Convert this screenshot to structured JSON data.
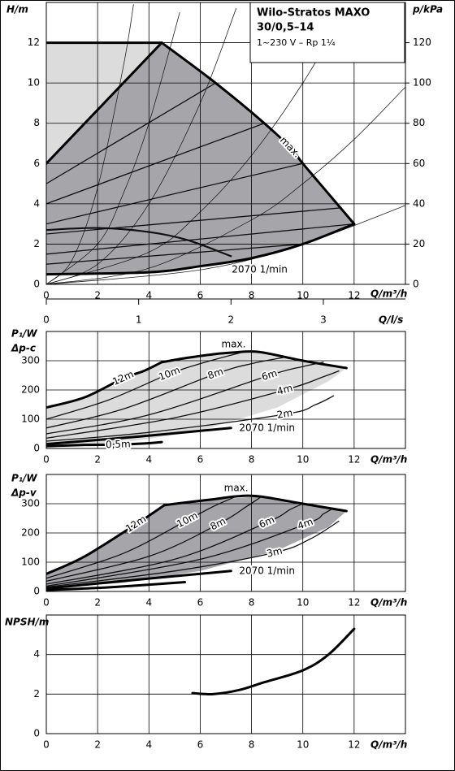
{
  "chart_data": [
    {
      "type": "line",
      "title": "Wilo-Stratos MAXO",
      "subtitle": "30/0,5–14",
      "note": "1~230 V – Rp 1¼",
      "ylabel": "H/m",
      "y2label": "p/kPa",
      "xlabel": "Q/m³/h",
      "x2label": "Q/l/s",
      "xlim": [
        0,
        14
      ],
      "xticks": [
        0,
        2,
        4,
        6,
        8,
        10,
        12
      ],
      "ylim": [
        0,
        14
      ],
      "yticks": [
        0,
        2,
        4,
        6,
        8,
        10,
        12
      ],
      "y2lim": [
        0,
        140
      ],
      "y2ticks": [
        0,
        20,
        40,
        60,
        80,
        100,
        120
      ],
      "x2lim": [
        0,
        3.889
      ],
      "x2ticks": [
        0,
        1,
        2,
        3
      ],
      "grid": true,
      "series": [
        {
          "style": "area",
          "color": "#dcdcdc",
          "x": [
            0,
            0,
            4.5
          ],
          "values": [
            6,
            12,
            12
          ]
        },
        {
          "style": "area",
          "color": "#a6a6aa",
          "x": [
            0,
            4.5,
            6.6,
            8.5,
            10,
            12,
            10,
            8,
            6,
            4,
            0
          ],
          "values": [
            6,
            12,
            10,
            8,
            6,
            3,
            2,
            1.3,
            0.9,
            0.6,
            0.5
          ]
        },
        {
          "style": "thin",
          "color": "#222222",
          "x": [
            0,
            1,
            2,
            3,
            3.4
          ],
          "values": [
            0,
            1.2,
            4.8,
            10.8,
            13.9
          ]
        },
        {
          "style": "thin",
          "color": "#222222",
          "x": [
            0,
            2,
            3,
            4,
            5.2
          ],
          "values": [
            0,
            2,
            4.5,
            8,
            13.5
          ]
        },
        {
          "style": "thin",
          "color": "#222222",
          "x": [
            0,
            2,
            4,
            6,
            7.4
          ],
          "values": [
            0,
            1,
            4,
            9,
            13.7
          ]
        },
        {
          "style": "thin",
          "color": "#222222",
          "x": [
            0,
            4,
            6,
            8,
            10,
            11.8
          ],
          "values": [
            0,
            1.6,
            3.6,
            6.4,
            10,
            13.9
          ]
        },
        {
          "style": "thin",
          "color": "#222222",
          "x": [
            0,
            4,
            8,
            10,
            12,
            14
          ],
          "values": [
            0,
            0.8,
            3.2,
            5,
            7.2,
            9.8
          ]
        },
        {
          "style": "thin",
          "color": "#222222",
          "x": [
            0,
            6,
            10,
            14
          ],
          "values": [
            0,
            0.72,
            2,
            3.92
          ]
        },
        {
          "style": "medium",
          "color": "#111111",
          "x": [
            0,
            6.6
          ],
          "values": [
            5,
            10
          ]
        },
        {
          "style": "medium",
          "color": "#111111",
          "x": [
            0,
            8.5
          ],
          "values": [
            4,
            8
          ]
        },
        {
          "style": "medium",
          "color": "#111111",
          "x": [
            0,
            10
          ],
          "values": [
            3,
            6
          ]
        },
        {
          "style": "medium",
          "color": "#111111",
          "x": [
            0,
            11.5
          ],
          "values": [
            2.5,
            3.8
          ]
        },
        {
          "style": "medium",
          "color": "#111111",
          "x": [
            0,
            12
          ],
          "values": [
            1.5,
            3
          ]
        },
        {
          "style": "medium",
          "color": "#111111",
          "x": [
            0,
            10
          ],
          "values": [
            1,
            2
          ]
        },
        {
          "style": "bold",
          "color": "#111111",
          "x": [
            0,
            2,
            4,
            5.5,
            7.2
          ],
          "values": [
            2.7,
            2.8,
            2.6,
            2.2,
            1.4
          ]
        },
        {
          "style": "thick",
          "color": "#000000",
          "x": [
            0,
            4.5
          ],
          "values": [
            12,
            12
          ]
        },
        {
          "style": "thick",
          "color": "#000000",
          "x": [
            0,
            4.5
          ],
          "values": [
            6,
            12
          ]
        },
        {
          "name": "max.",
          "label_pos": "mid",
          "style": "thick",
          "color": "#000000",
          "x": [
            4.5,
            6.6,
            8.5,
            9.5,
            10,
            11,
            12
          ],
          "values": [
            12,
            10,
            8,
            6.8,
            6,
            4.5,
            3
          ]
        },
        {
          "name": "2070 1/min",
          "label_pos": "below",
          "style": "thick",
          "color": "#000000",
          "x": [
            0,
            4,
            6,
            8,
            10,
            12
          ],
          "values": [
            0.5,
            0.6,
            0.9,
            1.3,
            2,
            3
          ]
        }
      ]
    },
    {
      "type": "line",
      "ylabel": "P₁/W",
      "ylabel_sub": "Δp-c",
      "xlabel": "Q/m³/h",
      "xlim": [
        0,
        14
      ],
      "xticks": [
        0,
        2,
        4,
        6,
        8,
        10,
        12
      ],
      "ylim": [
        0,
        400
      ],
      "yticks": [
        0,
        100,
        200,
        300
      ],
      "grid": true,
      "series": [
        {
          "style": "area",
          "color": "#dcdcdc",
          "x": [
            0,
            2,
            4.5,
            6,
            8.3,
            10,
            11.7,
            11,
            9,
            6,
            3,
            0
          ],
          "values": [
            140,
            190,
            295,
            315,
            330,
            300,
            275,
            230,
            140,
            60,
            20,
            5
          ]
        },
        {
          "name": "12m",
          "label_pos": "mid",
          "style": "thick",
          "color": "#000000",
          "x": [
            0,
            1.5,
            3,
            3.8,
            4.5
          ],
          "values": [
            140,
            175,
            240,
            265,
            295
          ]
        },
        {
          "name": "max.",
          "label_pos": "above",
          "style": "thick",
          "color": "#000000",
          "x": [
            4.5,
            5.5,
            6.5,
            7.3,
            8.3,
            10,
            11.7
          ],
          "values": [
            295,
            310,
            322,
            328,
            330,
            300,
            275
          ]
        },
        {
          "name": "10m",
          "label_pos": "mid",
          "style": "medium",
          "color": "#111111",
          "x": [
            0,
            2.4,
            4.8,
            6.2,
            7.6
          ],
          "values": [
            100,
            165,
            255,
            295,
            328
          ]
        },
        {
          "name": "8m",
          "label_pos": "mid",
          "style": "medium",
          "color": "#111111",
          "x": [
            0,
            3,
            6.6,
            8,
            9.3
          ],
          "values": [
            70,
            135,
            255,
            290,
            312
          ]
        },
        {
          "name": "6m",
          "label_pos": "mid",
          "style": "medium",
          "color": "#111111",
          "x": [
            0,
            4,
            8.7,
            10,
            10.8
          ],
          "values": [
            50,
            115,
            250,
            280,
            295
          ]
        },
        {
          "name": "4m",
          "label_pos": "mid",
          "style": "medium",
          "color": "#111111",
          "x": [
            0,
            5,
            9.3,
            10.8,
            11.4
          ],
          "values": [
            35,
            105,
            200,
            245,
            265
          ]
        },
        {
          "name": "2m",
          "label_pos": "mid",
          "style": "medium",
          "color": "#111111",
          "x": [
            0,
            4,
            9.3,
            10.5,
            11.2
          ],
          "values": [
            25,
            55,
            117,
            150,
            180
          ]
        },
        {
          "name": "2070 1/min",
          "label_pos": "end",
          "style": "thick",
          "color": "#000000",
          "x": [
            0,
            3.5,
            7.2
          ],
          "values": [
            15,
            40,
            70
          ]
        },
        {
          "name": "0,5m",
          "label_pos": "mid",
          "style": "thick",
          "color": "#000000",
          "x": [
            0,
            1.5,
            2.8,
            4,
            4.5
          ],
          "values": [
            8,
            12,
            13,
            18,
            22
          ]
        }
      ]
    },
    {
      "type": "line",
      "ylabel": "P₁/W",
      "ylabel_sub": "Δp-v",
      "xlabel": "Q/m³/h",
      "xlim": [
        0,
        14
      ],
      "xticks": [
        0,
        2,
        4,
        6,
        8,
        10,
        12
      ],
      "ylim": [
        0,
        400
      ],
      "yticks": [
        0,
        100,
        200,
        300
      ],
      "grid": true,
      "series": [
        {
          "style": "area",
          "color": "#a6a6aa",
          "x": [
            0,
            2,
            4.6,
            6,
            8.3,
            10,
            11.7,
            11,
            9,
            6,
            3,
            0
          ],
          "values": [
            60,
            140,
            295,
            310,
            325,
            300,
            275,
            220,
            140,
            70,
            30,
            10
          ]
        },
        {
          "name": "12m",
          "label_pos": "mid",
          "style": "thick",
          "color": "#000000",
          "x": [
            0,
            1.5,
            3.5,
            4.1,
            4.6
          ],
          "values": [
            60,
            120,
            230,
            265,
            295
          ]
        },
        {
          "name": "max.",
          "label_pos": "above",
          "style": "thick",
          "color": "#000000",
          "x": [
            4.6,
            5.5,
            6.5,
            7.4,
            8.3,
            10,
            11.7
          ],
          "values": [
            295,
            305,
            315,
            325,
            325,
            300,
            275
          ]
        },
        {
          "name": "10m",
          "label_pos": "mid",
          "style": "medium",
          "color": "#111111",
          "x": [
            0,
            3,
            5.5,
            6.5,
            7.4
          ],
          "values": [
            45,
            130,
            244,
            290,
            325
          ]
        },
        {
          "name": "8m",
          "label_pos": "mid",
          "style": "medium",
          "color": "#111111",
          "x": [
            0,
            4,
            6.7,
            7.8,
            8.4
          ],
          "values": [
            35,
            120,
            230,
            290,
            325
          ]
        },
        {
          "name": "6m",
          "label_pos": "mid",
          "style": "medium",
          "color": "#111111",
          "x": [
            0,
            5,
            8.6,
            9.5,
            10
          ],
          "values": [
            25,
            110,
            236,
            280,
            300
          ]
        },
        {
          "name": "4m",
          "label_pos": "mid",
          "style": "medium",
          "color": "#111111",
          "x": [
            0,
            6,
            10.1,
            10.8,
            11.2
          ],
          "values": [
            18,
            110,
            230,
            265,
            285
          ]
        },
        {
          "name": "3m",
          "label_pos": "mid",
          "style": "medium",
          "color": "#111111",
          "x": [
            0,
            5,
            8.9,
            10.3,
            11.4
          ],
          "values": [
            15,
            70,
            133,
            180,
            240
          ]
        },
        {
          "name": "2070 1/min",
          "label_pos": "end",
          "style": "thick",
          "color": "#000000",
          "x": [
            0,
            3.5,
            7.2
          ],
          "values": [
            10,
            40,
            70
          ]
        },
        {
          "style": "thick",
          "color": "#000000",
          "x": [
            0,
            2,
            3.5,
            5.4
          ],
          "values": [
            5,
            12,
            20,
            32
          ]
        }
      ]
    },
    {
      "type": "line",
      "ylabel": "NPSH/m",
      "xlabel": "Q/m³/h",
      "xlim": [
        0,
        14
      ],
      "xticks": [
        0,
        2,
        4,
        6,
        8,
        10,
        12
      ],
      "ylim": [
        0,
        6
      ],
      "yticks": [
        0,
        2,
        4
      ],
      "grid": true,
      "series": [
        {
          "style": "thick",
          "color": "#000000",
          "x": [
            5.7,
            6.5,
            7.5,
            8.5,
            10,
            11,
            12
          ],
          "values": [
            2.05,
            2,
            2.2,
            2.6,
            3.2,
            4,
            5.3
          ]
        }
      ]
    }
  ]
}
